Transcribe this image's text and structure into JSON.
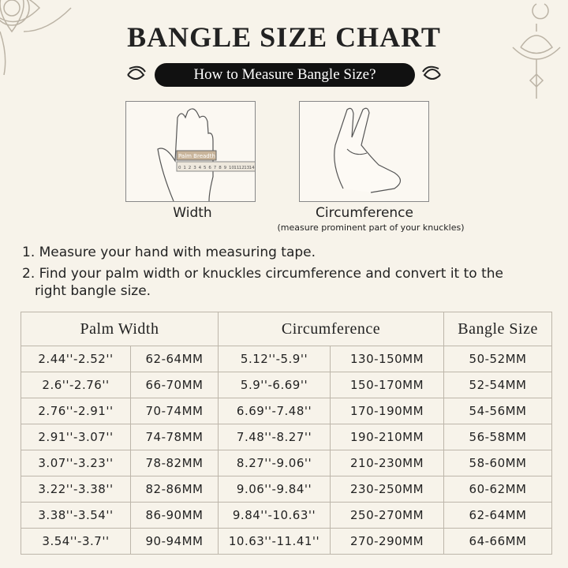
{
  "header": {
    "title": "BANGLE SIZE CHART",
    "subtitle": "How to Measure Bangle Size?"
  },
  "figures": [
    {
      "label": "Width",
      "ruler_label": "Palm Breadth",
      "ruler_numbers": [
        0,
        1,
        2,
        3,
        4,
        5,
        6,
        7,
        8,
        9,
        10,
        11,
        12,
        13,
        14
      ]
    },
    {
      "label": "Circumference",
      "note": "(measure prominent part of your knuckles)"
    }
  ],
  "steps": [
    "1. Measure your hand with measuring tape.",
    "2. Find your palm width or knuckles circumference and convert it to the right bangle size."
  ],
  "table": {
    "headers": [
      "Palm Width",
      "Circumference",
      "Bangle Size"
    ],
    "rows": [
      [
        "2.44''-2.52''",
        "62-64MM",
        "5.12''-5.9''",
        "130-150MM",
        "50-52MM"
      ],
      [
        "2.6''-2.76''",
        "66-70MM",
        "5.9''-6.69''",
        "150-170MM",
        "52-54MM"
      ],
      [
        "2.76''-2.91''",
        "70-74MM",
        "6.69''-7.48''",
        "170-190MM",
        "54-56MM"
      ],
      [
        "2.91''-3.07''",
        "74-78MM",
        "7.48''-8.27''",
        "190-210MM",
        "56-58MM"
      ],
      [
        "3.07''-3.23''",
        "78-82MM",
        "8.27''-9.06''",
        "210-230MM",
        "58-60MM"
      ],
      [
        "3.22''-3.38''",
        "82-86MM",
        "9.06''-9.84''",
        "230-250MM",
        "60-62MM"
      ],
      [
        "3.38''-3.54''",
        "86-90MM",
        "9.84''-10.63''",
        "250-270MM",
        "62-64MM"
      ],
      [
        "3.54''-3.7''",
        "90-94MM",
        "10.63''-11.41''",
        "270-290MM",
        "64-66MM"
      ]
    ]
  }
}
